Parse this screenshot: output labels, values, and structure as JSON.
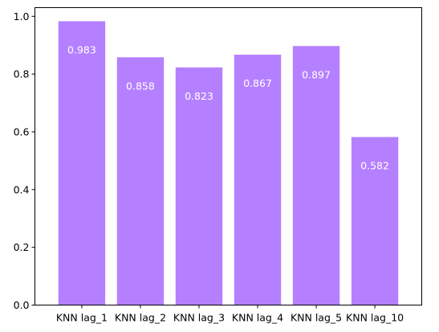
{
  "chart_data": {
    "type": "bar",
    "title": "",
    "xlabel": "",
    "ylabel": "",
    "categories": [
      "KNN lag_1",
      "KNN lag_2",
      "KNN lag_3",
      "KNN lag_4",
      "KNN lag_5",
      "KNN lag_10"
    ],
    "values": [
      0.983,
      0.858,
      0.823,
      0.867,
      0.897,
      0.582
    ],
    "data_labels": [
      "0.983",
      "0.858",
      "0.823",
      "0.867",
      "0.897",
      "0.582"
    ],
    "ylim": [
      0,
      1.03
    ],
    "y_ticks": [
      0.0,
      0.2,
      0.4,
      0.6,
      0.8,
      1.0
    ],
    "y_tick_labels": [
      "0.0",
      "0.2",
      "0.4",
      "0.6",
      "0.8",
      "1.0"
    ],
    "bar_color": "#b580ff",
    "label_color": "#ffffff",
    "grid": false,
    "legend": "none"
  }
}
